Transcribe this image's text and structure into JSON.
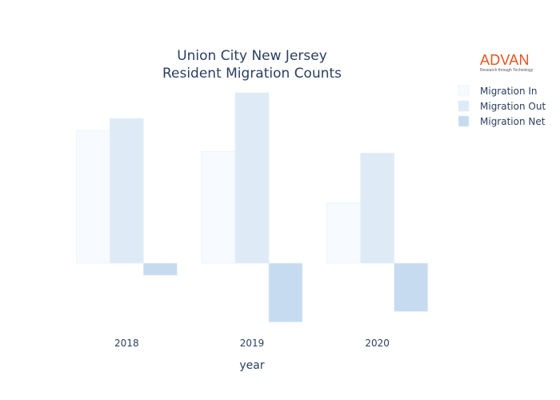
{
  "chart_data": {
    "type": "bar",
    "title_lines": [
      "Union City New Jersey",
      "Resident Migration Counts"
    ],
    "xlabel": "year",
    "ylabel": "",
    "categories": [
      "2018",
      "2019",
      "2020"
    ],
    "series": [
      {
        "name": "Migration In",
        "values": [
          8800,
          7400,
          4000
        ],
        "color": "#f7fbff"
      },
      {
        "name": "Migration Out",
        "values": [
          9600,
          11300,
          7300
        ],
        "color": "#deebf7"
      },
      {
        "name": "Migration Net",
        "values": [
          -800,
          -3900,
          -3200
        ],
        "color": "#c6dbef"
      }
    ],
    "ylim": [
      -4000,
      11500
    ],
    "grid": false,
    "legend_position": "top-right"
  },
  "logo": {
    "word": "ADVAN",
    "tagline": "Research through Technology",
    "color": "#e8531e"
  }
}
